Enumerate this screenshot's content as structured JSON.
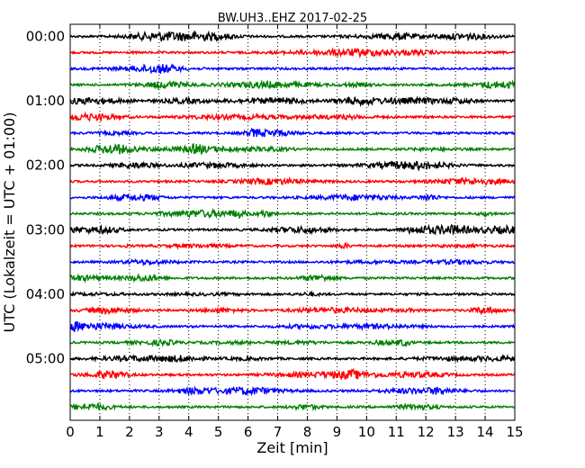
{
  "chart_data": {
    "type": "line",
    "title": "BW.UH3..EHZ 2017-02-25",
    "xlabel": "Zeit  [min]",
    "ylabel": "UTC (Lokalzeit = UTC + 01:00)",
    "xlim": [
      0,
      15
    ],
    "x_ticks": [
      "0",
      "1",
      "2",
      "3",
      "4",
      "5",
      "6",
      "7",
      "8",
      "9",
      "10",
      "11",
      "12",
      "13",
      "14",
      "15"
    ],
    "y_ticks": [
      "00:00",
      "01:00",
      "02:00",
      "03:00",
      "04:00",
      "05:00"
    ],
    "trace_interval_min": 15,
    "grid": "vertical dotted lines at each minute",
    "colors": [
      "#000000",
      "#ff0000",
      "#0000ff",
      "#008000"
    ],
    "traces": [
      {
        "start": "00:00",
        "color": "#000000"
      },
      {
        "start": "00:15",
        "color": "#ff0000"
      },
      {
        "start": "00:30",
        "color": "#0000ff"
      },
      {
        "start": "00:45",
        "color": "#008000"
      },
      {
        "start": "01:00",
        "color": "#000000"
      },
      {
        "start": "01:15",
        "color": "#ff0000"
      },
      {
        "start": "01:30",
        "color": "#0000ff"
      },
      {
        "start": "01:45",
        "color": "#008000"
      },
      {
        "start": "02:00",
        "color": "#000000"
      },
      {
        "start": "02:15",
        "color": "#ff0000"
      },
      {
        "start": "02:30",
        "color": "#0000ff"
      },
      {
        "start": "02:45",
        "color": "#008000"
      },
      {
        "start": "03:00",
        "color": "#000000"
      },
      {
        "start": "03:15",
        "color": "#ff0000"
      },
      {
        "start": "03:30",
        "color": "#0000ff"
      },
      {
        "start": "03:45",
        "color": "#008000"
      },
      {
        "start": "04:00",
        "color": "#000000"
      },
      {
        "start": "04:15",
        "color": "#ff0000"
      },
      {
        "start": "04:30",
        "color": "#0000ff"
      },
      {
        "start": "04:45",
        "color": "#008000"
      },
      {
        "start": "05:00",
        "color": "#000000"
      },
      {
        "start": "05:15",
        "color": "#ff0000"
      },
      {
        "start": "05:30",
        "color": "#0000ff"
      },
      {
        "start": "05:45",
        "color": "#008000"
      }
    ]
  }
}
